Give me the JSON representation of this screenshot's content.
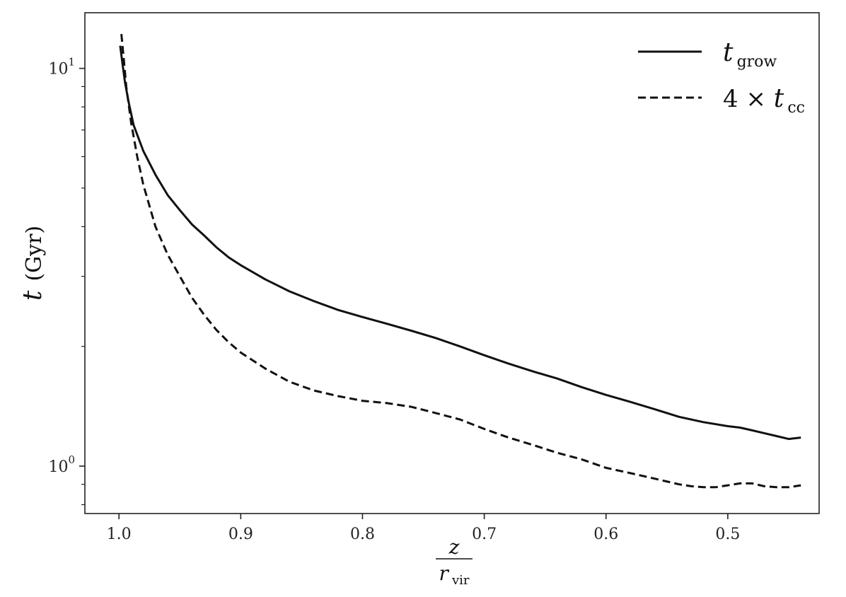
{
  "chart_data": {
    "type": "line",
    "title": "",
    "xlabel": {
      "numerator": "z",
      "denominator_base": "r",
      "denominator_sub": "vir"
    },
    "ylabel": {
      "var": "t",
      "unit": "(Gyr)"
    },
    "xlim": [
      1.028,
      0.425
    ],
    "ylim": [
      0.76,
      13.8
    ],
    "yscale": "log",
    "x_ticks": [
      1.0,
      0.9,
      0.8,
      0.7,
      0.6,
      0.5
    ],
    "x_tick_labels": [
      "1.0",
      "0.9",
      "0.8",
      "0.7",
      "0.6",
      "0.5"
    ],
    "y_major_ticks": [
      1,
      10
    ],
    "y_tick_labels": [
      {
        "base": "10",
        "exp": "0"
      },
      {
        "base": "10",
        "exp": "1"
      }
    ],
    "y_minor_ticks": [
      0.8,
      0.9,
      2,
      3,
      4,
      5,
      6,
      7,
      8,
      9
    ],
    "grid": false,
    "legend_position": "top-right",
    "series": [
      {
        "name": "t_grow",
        "legend": {
          "base": "t",
          "sub": "grow"
        },
        "style": "solid",
        "color": "#111111",
        "x": [
          0.999,
          0.997,
          0.995,
          0.992,
          0.988,
          0.98,
          0.97,
          0.96,
          0.95,
          0.94,
          0.93,
          0.92,
          0.91,
          0.9,
          0.88,
          0.86,
          0.84,
          0.82,
          0.8,
          0.78,
          0.76,
          0.74,
          0.72,
          0.7,
          0.68,
          0.66,
          0.64,
          0.62,
          0.6,
          0.58,
          0.56,
          0.54,
          0.52,
          0.5,
          0.49,
          0.48,
          0.47,
          0.46,
          0.45,
          0.44
        ],
        "y": [
          11.4,
          10.2,
          9.2,
          8.2,
          7.2,
          6.2,
          5.4,
          4.8,
          4.4,
          4.05,
          3.8,
          3.55,
          3.35,
          3.2,
          2.95,
          2.75,
          2.6,
          2.47,
          2.37,
          2.28,
          2.19,
          2.1,
          2.0,
          1.9,
          1.81,
          1.73,
          1.66,
          1.58,
          1.51,
          1.45,
          1.39,
          1.33,
          1.29,
          1.26,
          1.25,
          1.23,
          1.21,
          1.19,
          1.17,
          1.18
        ]
      },
      {
        "name": "4 x t_cc",
        "legend": {
          "prefix": "4 × ",
          "base": "t",
          "sub": "cc"
        },
        "style": "dashed",
        "color": "#111111",
        "x": [
          0.998,
          0.996,
          0.994,
          0.99,
          0.985,
          0.98,
          0.97,
          0.96,
          0.95,
          0.94,
          0.93,
          0.92,
          0.91,
          0.9,
          0.88,
          0.86,
          0.84,
          0.82,
          0.8,
          0.78,
          0.76,
          0.74,
          0.72,
          0.7,
          0.68,
          0.66,
          0.64,
          0.62,
          0.6,
          0.58,
          0.56,
          0.54,
          0.53,
          0.52,
          0.51,
          0.5,
          0.49,
          0.48,
          0.47,
          0.46,
          0.45,
          0.44
        ],
        "y": [
          12.2,
          10.5,
          9.0,
          7.3,
          6.0,
          5.1,
          4.0,
          3.4,
          3.0,
          2.65,
          2.4,
          2.2,
          2.05,
          1.93,
          1.76,
          1.63,
          1.55,
          1.5,
          1.46,
          1.44,
          1.41,
          1.36,
          1.31,
          1.24,
          1.18,
          1.13,
          1.08,
          1.04,
          0.99,
          0.96,
          0.93,
          0.9,
          0.89,
          0.885,
          0.885,
          0.895,
          0.905,
          0.905,
          0.89,
          0.885,
          0.885,
          0.895
        ]
      }
    ]
  }
}
